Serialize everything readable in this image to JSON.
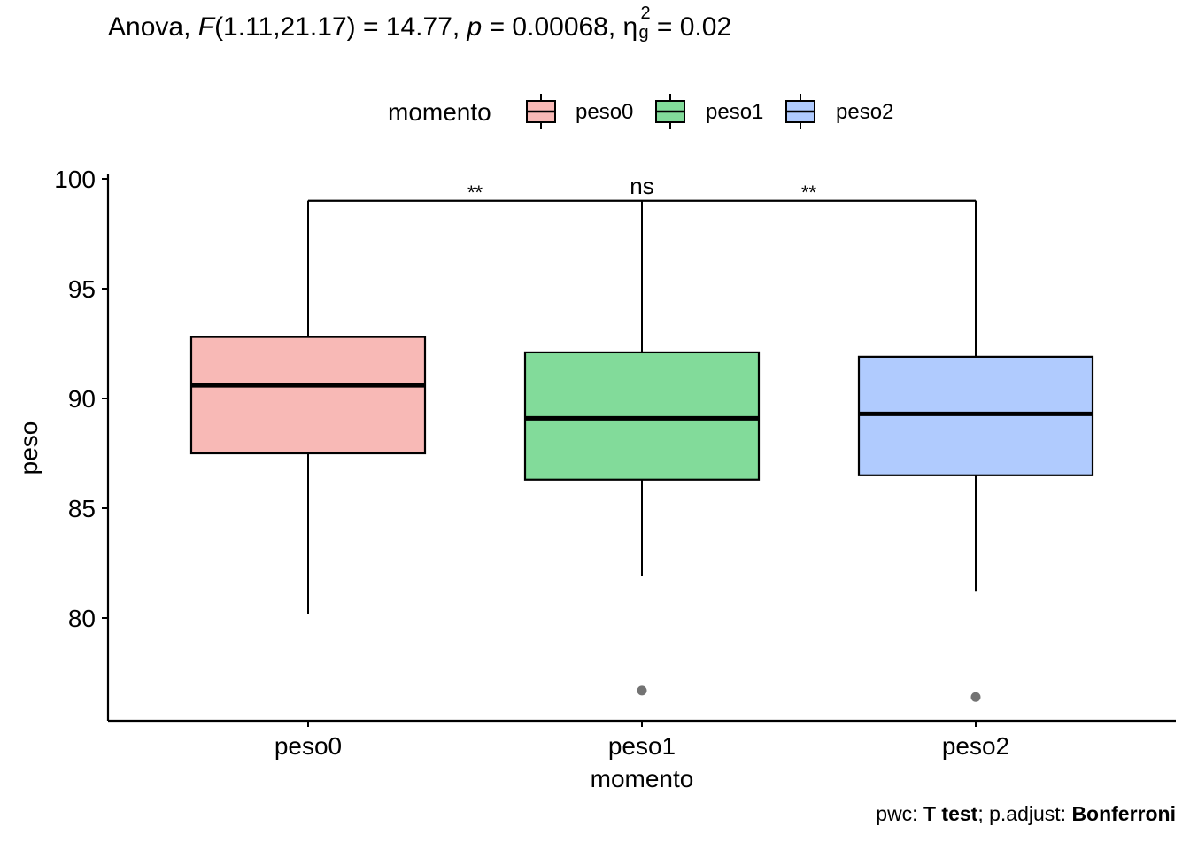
{
  "title": {
    "prefix": "Anova, ",
    "stat_symbol": "F",
    "df": "(1.11,21.17) = 14.77, ",
    "p_symbol": "p",
    "p_value": " = 0.00068, ",
    "effect_symbol": "η",
    "effect_sup": "2",
    "effect_sub": "g",
    "effect_value": " = 0.02"
  },
  "caption": {
    "pwc_label": "pwc: ",
    "pwc_method": "T test",
    "sep": "; p.adjust: ",
    "adjust_method": "Bonferroni"
  },
  "chart_data": {
    "type": "boxplot",
    "xlabel": "momento",
    "ylabel": "peso",
    "ylim": [
      75.5,
      100.2
    ],
    "y_ticks": [
      80,
      85,
      90,
      95,
      100
    ],
    "categories": [
      "peso0",
      "peso1",
      "peso2"
    ],
    "legend": {
      "title": "momento",
      "placement": "top",
      "entries": [
        "peso0",
        "peso1",
        "peso2"
      ]
    },
    "colors": {
      "peso0": "#f8b9b6",
      "peso1": "#82db9a",
      "peso2": "#b0cbfe"
    },
    "series": [
      {
        "name": "peso0",
        "whisker_low": 80.2,
        "q1": 87.5,
        "median": 90.6,
        "q3": 92.8,
        "whisker_high": 99.0,
        "outliers": []
      },
      {
        "name": "peso1",
        "whisker_low": 81.9,
        "q1": 86.3,
        "median": 89.1,
        "q3": 92.1,
        "whisker_high": 99.0,
        "outliers": [
          76.7
        ]
      },
      {
        "name": "peso2",
        "whisker_low": 81.2,
        "q1": 86.5,
        "median": 89.3,
        "q3": 91.9,
        "whisker_high": 99.0,
        "outliers": [
          76.4
        ]
      }
    ],
    "comparisons": [
      {
        "group1": "peso0",
        "group2": "peso1",
        "y": 99.0,
        "label": "**"
      },
      {
        "group1": "peso1",
        "group2": "peso2",
        "y": 99.0,
        "label": "**"
      },
      {
        "group1": "peso0",
        "group2": "peso2",
        "y": 99.0,
        "label": "ns"
      }
    ]
  }
}
